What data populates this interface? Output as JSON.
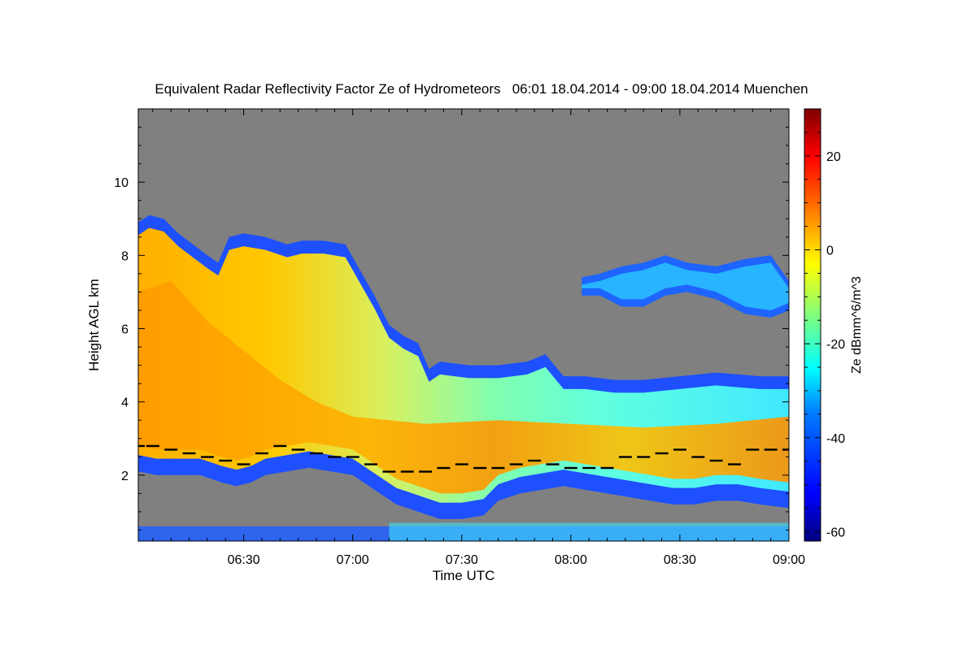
{
  "chart_data": {
    "type": "heatmap",
    "title": "Equivalent Radar Reflectivity Factor Ze of Hydrometeors",
    "period": "06:01 18.04.2014 - 09:00 18.04.2014",
    "location": "Muenchen",
    "title_full": "Equivalent Radar Reflectivity Factor Ze of Hydrometeors   06:01 18.04.2014 - 09:00 18.04.2014 Muenchen",
    "xlabel": "Time UTC",
    "ylabel": "Height AGL km",
    "x_range_minutes_after_0600": [
      1,
      180
    ],
    "y_range_km": [
      0.2,
      12.0
    ],
    "x_ticks": [
      {
        "label": "06:30",
        "value": 30
      },
      {
        "label": "07:00",
        "value": 60
      },
      {
        "label": "07:30",
        "value": 90
      },
      {
        "label": "08:00",
        "value": 120
      },
      {
        "label": "08:30",
        "value": 150
      },
      {
        "label": "09:00",
        "value": 180
      }
    ],
    "y_ticks": [
      {
        "label": "2",
        "value": 2
      },
      {
        "label": "4",
        "value": 4
      },
      {
        "label": "6",
        "value": 6
      },
      {
        "label": "8",
        "value": 8
      },
      {
        "label": "10",
        "value": 10
      }
    ],
    "colorbar": {
      "label": "Ze dBmm^6/m^3",
      "range": [
        -62,
        30
      ],
      "ticks": [
        {
          "label": "20",
          "value": 20
        },
        {
          "label": "0",
          "value": 0
        },
        {
          "label": "-20",
          "value": -20
        },
        {
          "label": "-40",
          "value": -40
        },
        {
          "label": "-60",
          "value": -60
        }
      ]
    },
    "colors": {
      "background_nodata": "#808080",
      "colormap": [
        "#00007f",
        "#0000ff",
        "#007fff",
        "#00ffff",
        "#7fff7f",
        "#ffff00",
        "#ff7f00",
        "#ff0000",
        "#7f0000"
      ]
    },
    "echo_regions": [
      {
        "name": "main cloud",
        "t_start": 1,
        "t_end": 180,
        "top_km": [
          [
            1,
            8.9
          ],
          [
            4,
            9.1
          ],
          [
            8,
            9.0
          ],
          [
            12,
            8.6
          ],
          [
            16,
            8.3
          ],
          [
            20,
            8.0
          ],
          [
            23,
            7.8
          ],
          [
            26,
            8.5
          ],
          [
            30,
            8.6
          ],
          [
            36,
            8.5
          ],
          [
            42,
            8.3
          ],
          [
            46,
            8.4
          ],
          [
            52,
            8.4
          ],
          [
            58,
            8.3
          ],
          [
            62,
            7.6
          ],
          [
            66,
            6.9
          ],
          [
            68,
            6.5
          ],
          [
            70,
            6.1
          ],
          [
            74,
            5.8
          ],
          [
            78,
            5.6
          ],
          [
            81,
            4.9
          ],
          [
            84,
            5.1
          ],
          [
            92,
            5.0
          ],
          [
            100,
            5.0
          ],
          [
            108,
            5.1
          ],
          [
            113,
            5.3
          ],
          [
            118,
            4.7
          ],
          [
            124,
            4.7
          ],
          [
            132,
            4.6
          ],
          [
            140,
            4.6
          ],
          [
            150,
            4.7
          ],
          [
            160,
            4.8
          ],
          [
            172,
            4.7
          ],
          [
            180,
            4.7
          ]
        ],
        "base_km": [
          [
            1,
            2.1
          ],
          [
            6,
            2.0
          ],
          [
            12,
            2.0
          ],
          [
            18,
            2.0
          ],
          [
            24,
            1.8
          ],
          [
            28,
            1.7
          ],
          [
            32,
            1.8
          ],
          [
            36,
            2.0
          ],
          [
            42,
            2.1
          ],
          [
            48,
            2.2
          ],
          [
            54,
            2.1
          ],
          [
            60,
            2.0
          ],
          [
            66,
            1.6
          ],
          [
            72,
            1.2
          ],
          [
            78,
            1.0
          ],
          [
            84,
            0.8
          ],
          [
            90,
            0.8
          ],
          [
            96,
            0.9
          ],
          [
            100,
            1.3
          ],
          [
            106,
            1.5
          ],
          [
            112,
            1.6
          ],
          [
            118,
            1.7
          ],
          [
            124,
            1.6
          ],
          [
            130,
            1.5
          ],
          [
            136,
            1.4
          ],
          [
            142,
            1.3
          ],
          [
            148,
            1.2
          ],
          [
            154,
            1.2
          ],
          [
            160,
            1.3
          ],
          [
            166,
            1.3
          ],
          [
            172,
            1.2
          ],
          [
            180,
            1.1
          ]
        ],
        "core_dbz": 0
      },
      {
        "name": "upper cloud",
        "t_start": 123,
        "t_end": 180,
        "top_km": [
          [
            123,
            7.4
          ],
          [
            128,
            7.5
          ],
          [
            134,
            7.7
          ],
          [
            140,
            7.8
          ],
          [
            146,
            8.0
          ],
          [
            152,
            7.8
          ],
          [
            160,
            7.7
          ],
          [
            168,
            7.9
          ],
          [
            175,
            8.0
          ],
          [
            180,
            7.3
          ]
        ],
        "base_km": [
          [
            123,
            6.9
          ],
          [
            128,
            6.9
          ],
          [
            134,
            6.6
          ],
          [
            140,
            6.6
          ],
          [
            146,
            6.9
          ],
          [
            152,
            7.0
          ],
          [
            160,
            6.8
          ],
          [
            168,
            6.4
          ],
          [
            175,
            6.3
          ],
          [
            180,
            6.5
          ]
        ],
        "core_dbz": -40
      }
    ],
    "melting_layer_dots_km": [
      [
        1,
        2.8
      ],
      [
        5,
        2.8
      ],
      [
        10,
        2.7
      ],
      [
        15,
        2.6
      ],
      [
        20,
        2.5
      ],
      [
        25,
        2.4
      ],
      [
        30,
        2.3
      ],
      [
        35,
        2.6
      ],
      [
        40,
        2.8
      ],
      [
        45,
        2.7
      ],
      [
        50,
        2.6
      ],
      [
        55,
        2.5
      ],
      [
        60,
        2.5
      ],
      [
        65,
        2.3
      ],
      [
        70,
        2.1
      ],
      [
        75,
        2.1
      ],
      [
        80,
        2.1
      ],
      [
        85,
        2.2
      ],
      [
        90,
        2.3
      ],
      [
        95,
        2.2
      ],
      [
        100,
        2.2
      ],
      [
        105,
        2.3
      ],
      [
        110,
        2.4
      ],
      [
        115,
        2.3
      ],
      [
        120,
        2.2
      ],
      [
        125,
        2.2
      ],
      [
        130,
        2.2
      ],
      [
        135,
        2.5
      ],
      [
        140,
        2.5
      ],
      [
        145,
        2.6
      ],
      [
        150,
        2.7
      ],
      [
        155,
        2.5
      ],
      [
        160,
        2.4
      ],
      [
        165,
        2.3
      ],
      [
        170,
        2.7
      ],
      [
        175,
        2.7
      ],
      [
        180,
        2.7
      ]
    ],
    "ground_clutter_km": [
      0.2,
      0.6
    ]
  }
}
